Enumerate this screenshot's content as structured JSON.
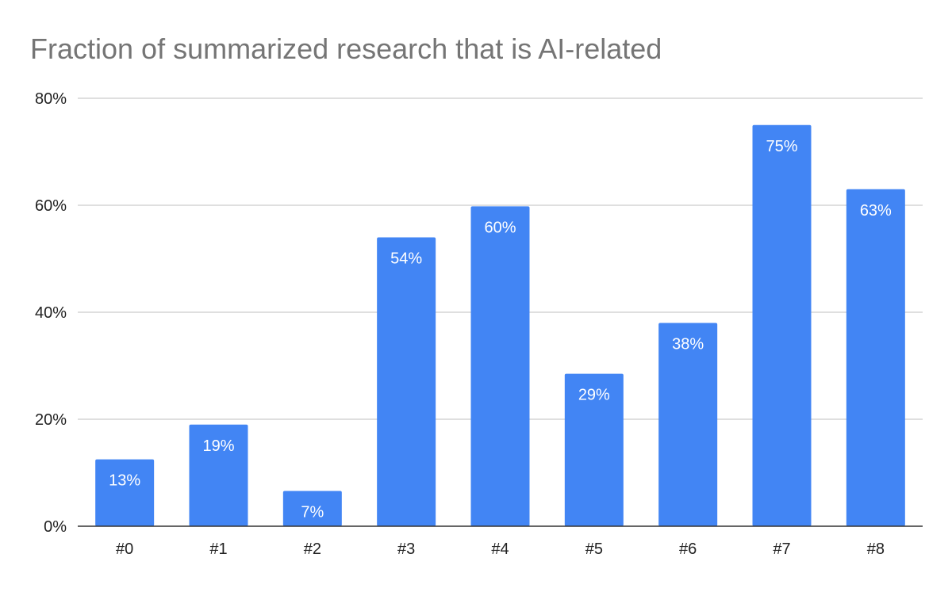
{
  "chart_data": {
    "type": "bar",
    "title": "Fraction of summarized research that is AI-related",
    "xlabel": "",
    "ylabel": "",
    "categories": [
      "#0",
      "#1",
      "#2",
      "#3",
      "#4",
      "#5",
      "#6",
      "#7",
      "#8"
    ],
    "values": [
      0.125,
      0.19,
      0.066,
      0.54,
      0.598,
      0.285,
      0.38,
      0.75,
      0.63
    ],
    "data_labels": [
      "13%",
      "19%",
      "7%",
      "54%",
      "60%",
      "29%",
      "38%",
      "75%",
      "63%"
    ],
    "ylim": [
      0,
      0.8
    ],
    "y_ticks": [
      0,
      0.2,
      0.4,
      0.6,
      0.8
    ],
    "y_tick_labels": [
      "0%",
      "20%",
      "40%",
      "60%",
      "80%"
    ],
    "grid": true,
    "legend": "none",
    "colors": {
      "bar": "#4285f4",
      "grid": "#cccccc",
      "axis": "#333333",
      "title": "#757575",
      "tick_text": "#222222",
      "label_text": "#ffffff"
    }
  }
}
